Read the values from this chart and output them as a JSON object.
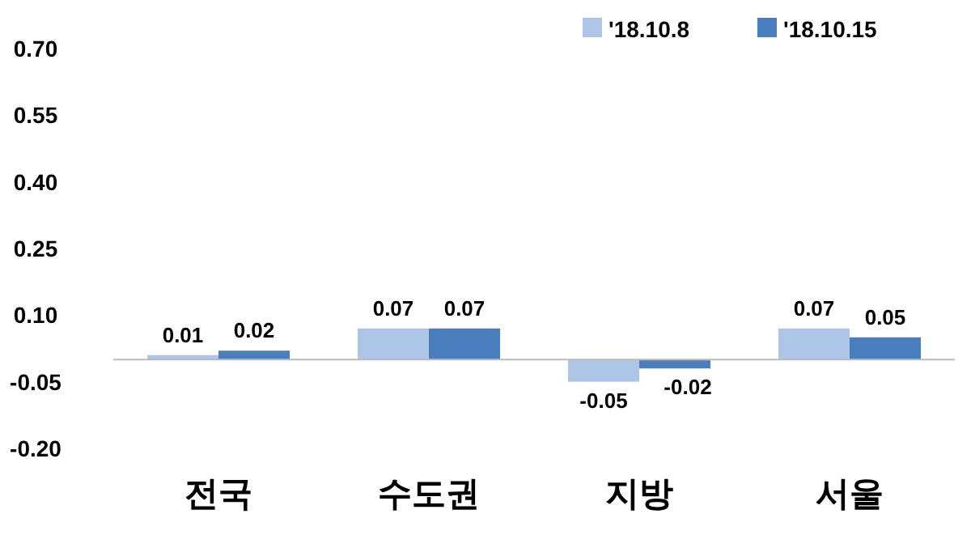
{
  "chart_data": {
    "type": "bar",
    "categories": [
      "전국",
      "수도권",
      "지방",
      "서울"
    ],
    "series": [
      {
        "name": "'18.10.8",
        "color": "#aec6e6",
        "values": [
          0.01,
          0.07,
          -0.05,
          0.07
        ]
      },
      {
        "name": "'18.10.15",
        "color": "#4a7ebf",
        "values": [
          0.02,
          0.07,
          -0.02,
          0.05
        ]
      }
    ],
    "ylim": [
      -0.2,
      0.7
    ],
    "yticks": [
      {
        "value": 0.7,
        "label": "0.70"
      },
      {
        "value": 0.55,
        "label": "0.55"
      },
      {
        "value": 0.4,
        "label": "0.40"
      },
      {
        "value": 0.25,
        "label": "0.25"
      },
      {
        "value": 0.1,
        "label": "0.10"
      },
      {
        "value": -0.05,
        "label": "-0.05"
      },
      {
        "value": -0.2,
        "label": "-0.20"
      }
    ],
    "data_labels": true,
    "legend": "top right",
    "grid": false
  }
}
